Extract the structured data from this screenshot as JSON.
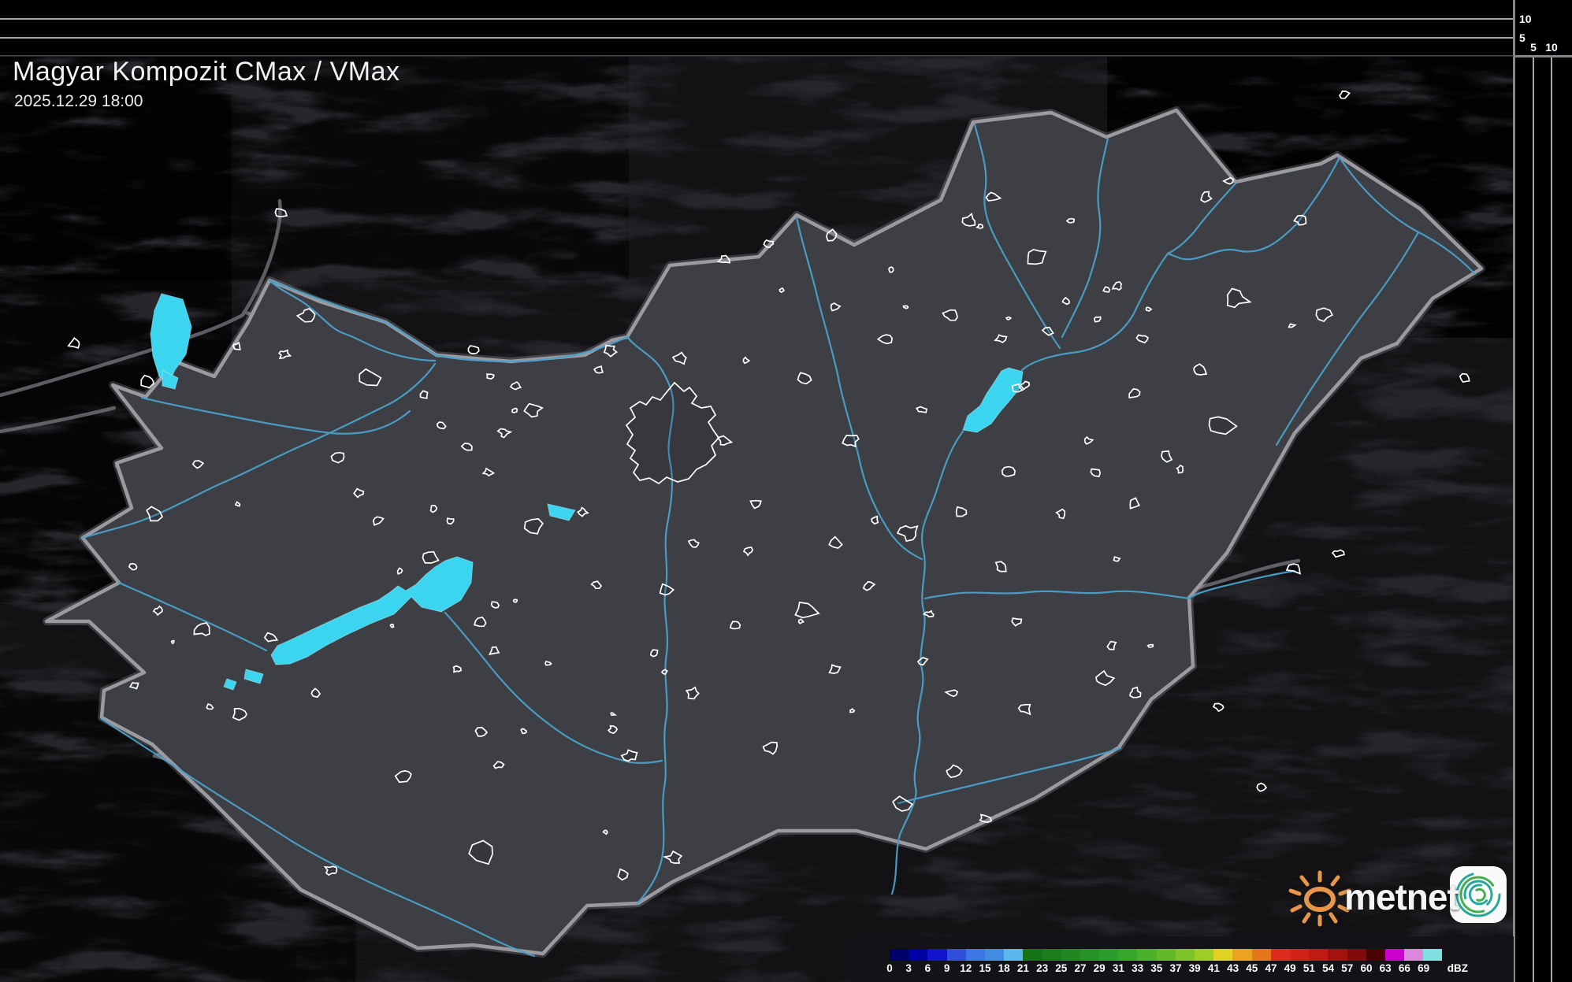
{
  "header": {
    "title": "Magyar Kompozit CMax / VMax",
    "timestamp": "2025.12.29 18:00"
  },
  "axes": {
    "top_height_labels": [
      "10",
      "5"
    ],
    "right_distance_labels": [
      "5",
      "10"
    ]
  },
  "legend": {
    "unit": "dBZ",
    "ticks": [
      "0",
      "3",
      "6",
      "9",
      "12",
      "15",
      "18",
      "21",
      "23",
      "25",
      "27",
      "29",
      "31",
      "33",
      "35",
      "37",
      "39",
      "41",
      "43",
      "45",
      "47",
      "49",
      "51",
      "54",
      "57",
      "60",
      "63",
      "66",
      "69"
    ],
    "colors": [
      "#00006b",
      "#0000a6",
      "#1414cf",
      "#2e50da",
      "#3c78e4",
      "#418ce0",
      "#5ab8ea",
      "#167416",
      "#1b7e1b",
      "#218821",
      "#279227",
      "#2d9c2d",
      "#37a62b",
      "#4bb02a",
      "#63ba29",
      "#7ec428",
      "#9cce26",
      "#ded321",
      "#eba41e",
      "#e57619",
      "#dc2d1e",
      "#d22318",
      "#c01b12",
      "#a3130e",
      "#800b08",
      "#4a0303",
      "#cc00cc",
      "#dd86dd",
      "#7fe0e0"
    ]
  },
  "branding": {
    "wordmark": "metnet"
  },
  "theme": {
    "lake_cyan": "#3bd5ef",
    "river_blue": "#4aa0c8",
    "land": "#3e3e45",
    "outside_land": "#26262b",
    "border_gray": "#9a9aa0",
    "road_gray": "#7d7d85",
    "settlement_white": "#ffffff",
    "legend_bg": "#131317",
    "panel_black": "#000000",
    "gridline_white": "#ffffff",
    "divider_gray": "#86868c",
    "sun_orange": "#e8964a",
    "logo_teal": "#27a79a",
    "logo_green": "#43b04c"
  }
}
